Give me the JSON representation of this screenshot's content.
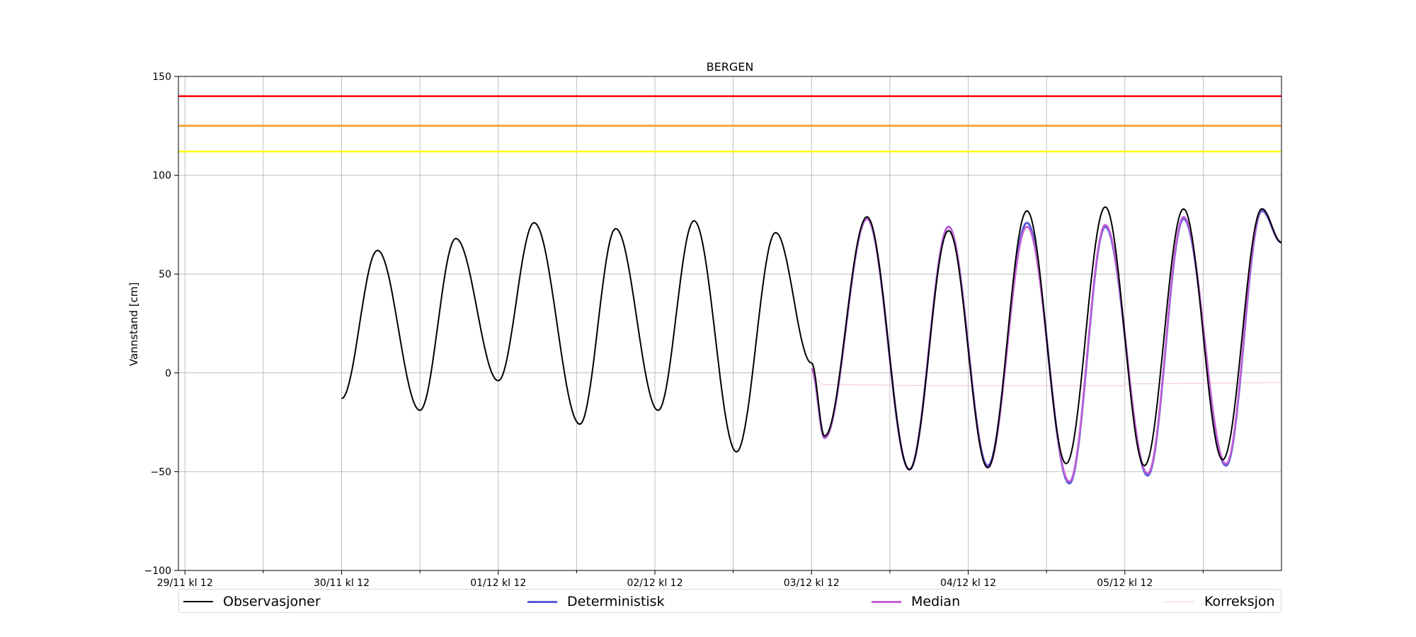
{
  "chart_data": {
    "type": "line",
    "title": "BERGEN",
    "xlabel": "",
    "ylabel": "Vannstand [cm]",
    "x_unit": "hours since 29/11 kl 12",
    "xlim": [
      -1,
      168
    ],
    "ylim": [
      -100,
      150
    ],
    "x_ticks": [
      {
        "x": 0,
        "label": "29/11 kl 12"
      },
      {
        "x": 24,
        "label": "30/11 kl 12"
      },
      {
        "x": 48,
        "label": "01/12 kl 12"
      },
      {
        "x": 72,
        "label": "02/12 kl 12"
      },
      {
        "x": 96,
        "label": "03/12 kl 12"
      },
      {
        "x": 120,
        "label": "04/12 kl 12"
      },
      {
        "x": 144,
        "label": "05/12 kl 12"
      }
    ],
    "x_minor_ticks": [
      12,
      36,
      60,
      84,
      108,
      132,
      156
    ],
    "y_ticks": [
      -100,
      -50,
      0,
      50,
      100,
      150
    ],
    "grid": true,
    "thresholds": [
      {
        "value": 140,
        "color": "#ff0000"
      },
      {
        "value": 125,
        "color": "#ff9a1f"
      },
      {
        "value": 112,
        "color": "#ffff00"
      }
    ],
    "legend_position": "bottom",
    "series": [
      {
        "name": "Observasjoner",
        "color": "#000000",
        "x": [
          24,
          29.5,
          36,
          41.5,
          48,
          53.5,
          60.5,
          66,
          72.5,
          78,
          84.5,
          90.5,
          96
        ],
        "y": [
          -13,
          62,
          -19,
          68,
          -4,
          76,
          -26,
          73,
          -19,
          77,
          -40,
          71,
          5
        ],
        "x_forecast": [
          96,
          98,
          104.5,
          111,
          117,
          123,
          129,
          135,
          141,
          147,
          153,
          159,
          165,
          168
        ],
        "y_forecast": [
          5,
          -32,
          79,
          -49,
          72,
          -48,
          82,
          -46,
          84,
          -47,
          83,
          -44,
          83,
          66
        ]
      },
      {
        "name": "Deterministisk",
        "color": "#5b5bd6",
        "x": [
          96,
          98,
          104.5,
          111,
          117,
          123,
          129,
          135.5,
          141,
          147.5,
          153,
          159.5,
          165,
          168
        ],
        "y": [
          2,
          -33,
          78,
          -49,
          74,
          -47,
          76,
          -56,
          74,
          -52,
          78,
          -47,
          82,
          66
        ]
      },
      {
        "name": "Median",
        "color": "#c55fd6",
        "x": [
          96,
          98,
          104.5,
          111,
          117,
          123,
          129,
          135.5,
          141,
          147.5,
          153,
          159.5,
          165,
          168
        ],
        "y": [
          2,
          -33,
          78,
          -49,
          74,
          -48,
          74,
          -55,
          75,
          -51,
          79,
          -46,
          83,
          66
        ]
      },
      {
        "name": "Korreksjon",
        "color": "#f2cfd8",
        "x": [
          96,
          98,
          120,
          144,
          144.2,
          168
        ],
        "y": [
          -2,
          -6,
          -6.5,
          -6.5,
          -5.5,
          -5
        ]
      }
    ]
  }
}
